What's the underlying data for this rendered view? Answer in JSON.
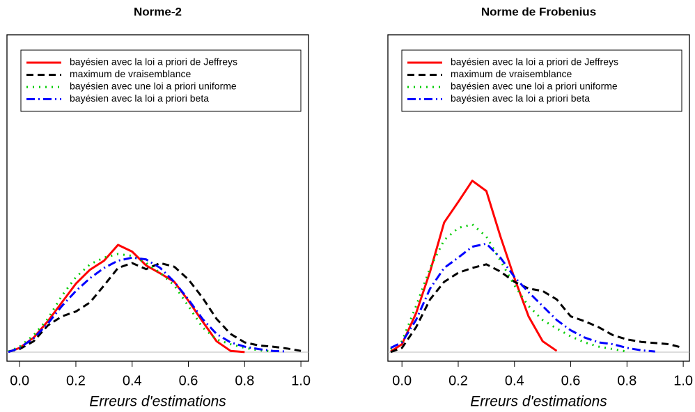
{
  "chart_data": [
    {
      "type": "line",
      "title": "Norme-2",
      "xlabel": "Erreurs d'estimations",
      "x": [
        -0.04,
        0,
        0.05,
        0.1,
        0.15,
        0.2,
        0.25,
        0.3,
        0.35,
        0.4,
        0.45,
        0.5,
        0.55,
        0.6,
        0.65,
        0.7,
        0.75,
        0.8,
        0.85,
        0.9,
        0.95,
        1.0
      ],
      "series": [
        {
          "name": "bayésien avec la loi a priori de Jeffreys",
          "color": "#ff0000",
          "linestyle": "solid",
          "values": [
            0,
            0.07,
            0.24,
            0.51,
            0.82,
            1.13,
            1.36,
            1.51,
            1.77,
            1.66,
            1.43,
            1.3,
            1.16,
            0.85,
            0.51,
            0.18,
            0.02,
            0,
            null,
            null,
            null,
            null
          ]
        },
        {
          "name": "maximum de vraisemblance",
          "color": "#000000",
          "linestyle": "dashed",
          "values": [
            0.01,
            0.05,
            0.18,
            0.44,
            0.59,
            0.67,
            0.82,
            1.1,
            1.39,
            1.47,
            1.37,
            1.47,
            1.41,
            1.2,
            0.9,
            0.55,
            0.3,
            0.16,
            0.11,
            0.09,
            0.06,
            0.02
          ]
        },
        {
          "name": "bayésien avec une loi a priori uniforme",
          "color": "#00cc00",
          "linestyle": "dotted",
          "values": [
            0.01,
            0.09,
            0.28,
            0.55,
            0.93,
            1.24,
            1.45,
            1.56,
            1.62,
            1.59,
            1.47,
            1.31,
            1.1,
            0.76,
            0.41,
            0.21,
            0.13,
            0.07,
            0.03,
            0.01,
            null,
            null
          ]
        },
        {
          "name": "bayésien avec la loi a priori beta",
          "color": "#0000ff",
          "linestyle": "dotdash",
          "values": [
            0,
            0.07,
            0.23,
            0.47,
            0.76,
            1.01,
            1.22,
            1.39,
            1.51,
            1.56,
            1.53,
            1.39,
            1.16,
            0.87,
            0.55,
            0.3,
            0.16,
            0.09,
            0.05,
            0.02,
            0.01,
            null
          ]
        }
      ],
      "xlim": [
        -0.045,
        1.027
      ],
      "ylim": [
        -0.15,
        5.24
      ],
      "xticks": [
        {
          "value": 0,
          "label": "0.0"
        },
        0.2,
        0.4,
        0.6,
        0.8,
        {
          "value": 1,
          "label": "1.0"
        }
      ],
      "zero_line": true,
      "legend": "top"
    },
    {
      "type": "line",
      "title": "Norme de Frobenius",
      "xlabel": "Erreurs d'estimations",
      "x": [
        -0.04,
        0,
        0.05,
        0.1,
        0.15,
        0.2,
        0.25,
        0.3,
        0.35,
        0.4,
        0.45,
        0.5,
        0.55,
        0.6,
        0.65,
        0.7,
        0.75,
        0.8,
        0.85,
        0.9,
        0.95,
        1.0
      ],
      "series": [
        {
          "name": "bayésien avec la loi a priori de Jeffreys",
          "color": "#ff0000",
          "linestyle": "solid",
          "values": [
            0.01,
            0.13,
            0.64,
            1.33,
            2.14,
            2.48,
            2.83,
            2.66,
            1.91,
            1.22,
            0.59,
            0.18,
            0.02,
            null,
            null,
            null,
            null,
            null,
            null,
            null,
            null,
            null
          ]
        },
        {
          "name": "maximum de vraisemblance",
          "color": "#000000",
          "linestyle": "dashed",
          "values": [
            0,
            0.07,
            0.41,
            0.87,
            1.16,
            1.31,
            1.39,
            1.45,
            1.33,
            1.16,
            1.05,
            1.01,
            0.87,
            0.59,
            0.51,
            0.41,
            0.28,
            0.21,
            0.17,
            0.15,
            0.13,
            0.07
          ]
        },
        {
          "name": "bayésien avec une loi a priori uniforme",
          "color": "#00cc00",
          "linestyle": "dotted",
          "values": [
            0.05,
            0.18,
            0.76,
            1.39,
            1.85,
            2.05,
            2.11,
            1.91,
            1.51,
            1.1,
            0.76,
            0.53,
            0.39,
            0.26,
            0.16,
            0.09,
            0.05,
            0.01,
            null,
            null,
            null,
            null
          ]
        },
        {
          "name": "bayésien avec la loi a priori beta",
          "color": "#0000ff",
          "linestyle": "dotdash",
          "values": [
            0.07,
            0.16,
            0.53,
            1.05,
            1.39,
            1.56,
            1.74,
            1.79,
            1.56,
            1.24,
            0.99,
            0.76,
            0.53,
            0.36,
            0.24,
            0.16,
            0.13,
            0.07,
            0.03,
            0.01,
            null,
            null
          ]
        }
      ],
      "xlim": [
        -0.05,
        1.022
      ],
      "ylim": [
        -0.15,
        5.24
      ],
      "xticks": [
        {
          "value": 0,
          "label": "0.0"
        },
        0.2,
        0.4,
        0.6,
        0.8,
        {
          "value": 1,
          "label": "1.0"
        }
      ],
      "zero_line": true,
      "legend": "top"
    }
  ]
}
